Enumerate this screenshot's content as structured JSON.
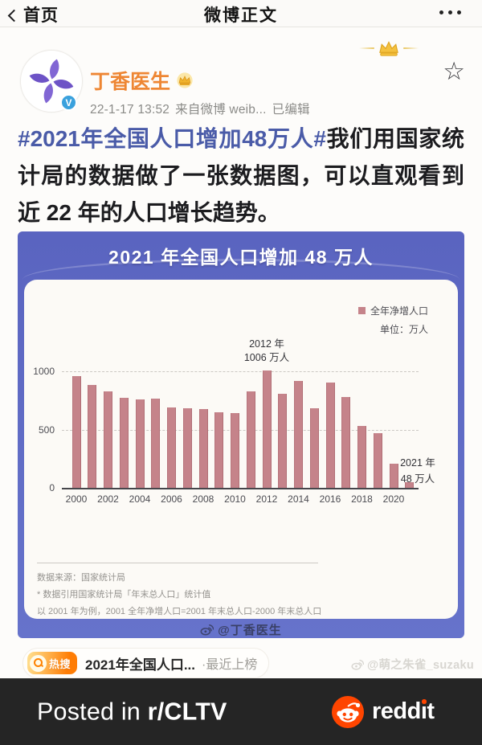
{
  "nav": {
    "back_label": "首页",
    "title": "微博正文"
  },
  "icons": {
    "star": "☆"
  },
  "post": {
    "author": "丁香医生",
    "time": "22-1-17 13:52",
    "source": "来自微博 weib...",
    "edited": "已编辑",
    "hashtag": "#2021年全国人口增加48万人#",
    "body": "我们用国家统计局的数据做了一张数据图，可以直观看到近 22 年的人口增长趋势。"
  },
  "infographic": {
    "title": "2021 年全国人口增加 48 万人",
    "legend_label": "全年净增人口",
    "unit_label": "单位：万人",
    "peak_note": {
      "line1": "2012 年",
      "line2": "1006 万人"
    },
    "latest_note": {
      "line1": "2021 年",
      "line2": "48 万人"
    },
    "source_line": "数据来源：国家统计局",
    "footnote1": "* 数据引用国家统计局「年末总人口」统计值",
    "footnote2": "以 2001 年为例，2001 全年净增人口=2001 年末总人口-2000 年末总人口",
    "credit": "@丁香医生"
  },
  "chart_data": {
    "type": "bar",
    "title": "2021 年全国人口增加 48 万人",
    "series_name": "全年净增人口",
    "unit": "万人",
    "categories": [
      "2000",
      "2001",
      "2002",
      "2003",
      "2004",
      "2005",
      "2006",
      "2007",
      "2008",
      "2009",
      "2010",
      "2011",
      "2012",
      "2013",
      "2014",
      "2015",
      "2016",
      "2017",
      "2018",
      "2019",
      "2020",
      "2021"
    ],
    "values": [
      957,
      884,
      826,
      774,
      761,
      768,
      692,
      681,
      673,
      648,
      641,
      825,
      1006,
      804,
      920,
      680,
      906,
      779,
      530,
      467,
      204,
      48
    ],
    "yticks": [
      0,
      500,
      1000
    ],
    "ylim": [
      0,
      1050
    ],
    "xtick_labels": [
      "2000",
      "2002",
      "2004",
      "2006",
      "2008",
      "2010",
      "2012",
      "2014",
      "2016",
      "2018",
      "2020"
    ],
    "bar_color": "#c5838a",
    "grid": "horizontal dashed at 500 and 1000",
    "legend_position": "top-right",
    "annotations": [
      {
        "category": "2012",
        "text": "2012 年 1006 万人"
      },
      {
        "category": "2021",
        "text": "2021 年 48 万人"
      }
    ]
  },
  "hotsearch": {
    "badge_label": "热搜",
    "topic": "2021年全国人口...",
    "status": "·最近上榜"
  },
  "watermark": "@萌之朱雀_suzaku",
  "reddit_bar": {
    "posted_prefix": "Posted in ",
    "subreddit": "r/CLTV",
    "brand_redd": "redd",
    "brand_t": "t"
  },
  "colors": {
    "accent_orange": "#ee8633",
    "hashtag_blue": "#4a5ba8",
    "infographic_purple": "#616dc6",
    "bar_pink": "#c5838a",
    "hot_badge_orange": "#ff7d05",
    "reddit_orange": "#ff4500",
    "footer_dark": "#252525"
  }
}
